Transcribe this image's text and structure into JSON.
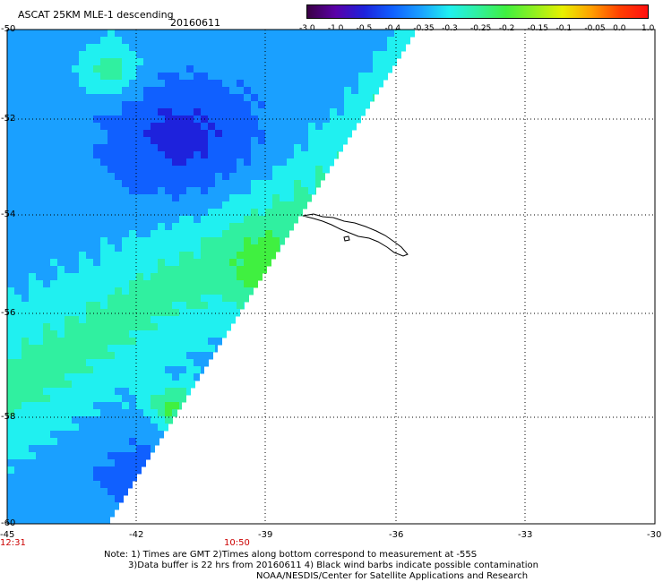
{
  "title": "ASCAT 25KM MLE-1 descending",
  "date": "20160611",
  "colorbar": {
    "labels": [
      "-3.0",
      "-1.0",
      "-0.5",
      "-0.4",
      "-0.35",
      "-0.3",
      "-0.25",
      "-0.2",
      "-0.15",
      "-0.1",
      "-0.05",
      "0.0",
      "1.0"
    ],
    "colors": [
      "#3a0044",
      "#5a00a8",
      "#1e22dc",
      "#1060ff",
      "#1aa0ff",
      "#20f0f0",
      "#30f0a0",
      "#40f040",
      "#90f020",
      "#e8f000",
      "#ffa000",
      "#ff4000",
      "#ff1010"
    ]
  },
  "axes": {
    "x_labels": [
      "-45",
      "-42",
      "-39",
      "-36",
      "-33",
      "-30"
    ],
    "y_labels": [
      "-50",
      "-52",
      "-54",
      "-56",
      "-58",
      "-60"
    ]
  },
  "time_labels": [
    "12:31",
    "10:50"
  ],
  "notes": [
    "Note: 1) Times are GMT 2)Times along bottom correspond to measurement at -55S",
    "3)Data buffer is 22 hrs from 20160611 4) Black wind barbs indicate possible contamination",
    "NOAA/NESDIS/Center for Satellite Applications and Research"
  ],
  "colors": {
    "land_outline": "#000000",
    "grid": "#000000",
    "time_text": "#cc0000"
  }
}
